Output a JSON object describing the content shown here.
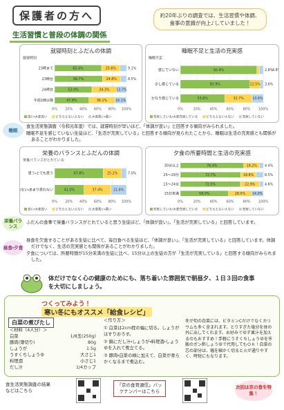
{
  "header": {
    "title": "保護者の方へ",
    "callout": "約20年ぶりの調査では、生活習慣や体調、食事の意識が向上♪していました！"
  },
  "section_title": "生活習慣と普段の体調の関係",
  "chart_data": [
    {
      "type": "bar",
      "orientation": "horizontal",
      "stacked": true,
      "title": "就寝時刻とふだんの体調",
      "y_label": "就寝時刻",
      "categories": [
        "23時まで",
        "23時台",
        "24時台",
        "午前1時以降"
      ],
      "series": [
        {
          "name": "良い・大変良い",
          "color": "#8cc152",
          "values": [
            65.4,
            66.7,
            52.0,
            47.8
          ],
          "value_labels": [
            "65.4%",
            "66.7%",
            "52.0%",
            "47.8%"
          ]
        },
        {
          "name": "どちらともいえない",
          "color": "#ffd54f",
          "values": [
            25.6,
            24.8,
            34.3,
            36.1
          ],
          "value_labels": [
            "25.6%",
            "24.8%",
            "34.3%",
            "36.1%"
          ]
        },
        {
          "name": "大変悪い・悪い",
          "color": "#b3d4ec",
          "values": [
            9.1,
            8.5,
            13.7,
            16.1
          ],
          "value_labels": [
            "9.1%",
            "8.5%",
            "13.7%",
            "16.1%"
          ]
        }
      ],
      "xlim": [
        0,
        100
      ],
      "xticks": [
        {
          "value": 0,
          "label": "0%"
        },
        {
          "value": 20,
          "label": "20%"
        },
        {
          "value": 40,
          "label": "40%"
        },
        {
          "value": 60,
          "label": "60%"
        },
        {
          "value": 80,
          "label": "80%"
        },
        {
          "value": 100,
          "label": "100%"
        }
      ],
      "grid": true
    },
    {
      "type": "bar",
      "orientation": "horizontal",
      "stacked": true,
      "title": "睡眠不足と生活の充実感",
      "y_label": "睡眠不足",
      "categories": [
        "感じていない",
        "少し感じている",
        "かなり感じている"
      ],
      "series": [
        {
          "name": "充実している・大変充実している",
          "color": "#8cc152",
          "values": [
            92.4,
            83.9,
            53.8
          ],
          "value_labels": [
            "92.4%",
            "83.9%",
            "53.8%"
          ]
        },
        {
          "name": "どちらともいえない",
          "color": "#ffd54f",
          "values": [
            2.8,
            12.5,
            32.7
          ],
          "value_labels": [
            "2.8%",
            "12.5%",
            "32.7%"
          ]
        },
        {
          "name": "充実していない",
          "color": "#b3d4ec",
          "values": [
            4.8,
            3.6,
            13.6
          ],
          "value_labels": [
            "4.8%",
            "3.6%",
            "13.6%"
          ]
        }
      ],
      "xlim": [
        0,
        100
      ],
      "xticks": [
        {
          "value": 0,
          "label": "0%"
        },
        {
          "value": 20,
          "label": "20%"
        },
        {
          "value": 40,
          "label": "40%"
        },
        {
          "value": 60,
          "label": "60%"
        },
        {
          "value": 80,
          "label": "80%"
        },
        {
          "value": 100,
          "label": "100%"
        }
      ],
      "grid": true
    },
    {
      "type": "bar",
      "orientation": "horizontal",
      "stacked": true,
      "title": "栄養のバランスとふだんの体調",
      "y_label": "栄養バランスがとれている",
      "categories": [
        "思う・とても思う",
        "思わない・あまり思わない"
      ],
      "series": [
        {
          "name": "良い・大変良い",
          "color": "#8cc152",
          "values": [
            67.8,
            41.0
          ],
          "value_labels": [
            "67.8%",
            "41.0%"
          ]
        },
        {
          "name": "どちらともいえない",
          "color": "#ffd54f",
          "values": [
            25.2,
            37.4
          ],
          "value_labels": [
            "25.2%",
            "37.4%"
          ]
        },
        {
          "name": "大変悪い・悪い",
          "color": "#b3d4ec",
          "values": [
            7.0,
            21.6
          ],
          "value_labels": [
            "7.0%",
            "21.6%"
          ]
        }
      ],
      "xlim": [
        0,
        100
      ],
      "xticks": [
        {
          "value": 0,
          "label": "0%"
        },
        {
          "value": 20,
          "label": "20%"
        },
        {
          "value": 40,
          "label": "40%"
        },
        {
          "value": 60,
          "label": "60%"
        },
        {
          "value": 80,
          "label": "80%"
        },
        {
          "value": 100,
          "label": "100%"
        }
      ],
      "grid": true
    },
    {
      "type": "bar",
      "orientation": "horizontal",
      "stacked": true,
      "title": "夕食の所要時間と生活の充実感",
      "categories": [
        "30分以上",
        "25〜29分",
        "15〜24分",
        "15分未満"
      ],
      "series": [
        {
          "name": "充実している・大変充実している",
          "color": "#8cc152",
          "values": [
            76.4,
            72.7,
            72.5,
            58.0
          ],
          "value_labels": [
            "76.4%",
            "72.7%",
            "72.5%",
            "58.0%"
          ]
        },
        {
          "name": "どちらともいえない",
          "color": "#ffd54f",
          "values": [
            19.2,
            18.8,
            22.9,
            28.0
          ],
          "value_labels": [
            "19.2%",
            "18.8%",
            "22.9%",
            "28.0%"
          ]
        },
        {
          "name": "充実していない",
          "color": "#b3d4ec",
          "values": [
            4.4,
            8.5,
            4.6,
            14.0
          ],
          "value_labels": [
            "4.4%",
            "8.5%",
            "4.6%",
            "14.0%"
          ]
        }
      ],
      "xlim": [
        0,
        100
      ],
      "xticks": [
        {
          "value": 0,
          "label": "0%"
        },
        {
          "value": 20,
          "label": "20%"
        },
        {
          "value": 40,
          "label": "40%"
        },
        {
          "value": 60,
          "label": "60%"
        },
        {
          "value": 80,
          "label": "80%"
        },
        {
          "value": 100,
          "label": "100%"
        }
      ],
      "grid": true
    }
  ],
  "notes": [
    {
      "label": "睡眠",
      "items": [
        "食生活実態調査（令和元年度）では、就寝時刻が早いほど、「体調が良い」と回答する傾向がみられました。",
        "睡眠不足を感じていない生徒ほど、「生活が充実している」と回答する傾向が見られたことから、睡眠は生活の充実感とも関係があることがわかりました。"
      ]
    },
    {
      "label": "栄養バランス",
      "items": [
        "ふだんの食事で栄養バランスがとれていると思う生徒ほど、「体調が良い」、「生活が充実している」と回答しています。"
      ]
    },
    {
      "label": "昼食・夕食",
      "items": [
        "昼食を欠食することがある生徒に比べて、毎日食べる生徒ほど、「体調が良い」、「生活が充実している」と回答しています。体調だけでなく、生活の充実感とも関係があることがわかりました。",
        "夕食については、所要時間が15分未満の生徒に比べ、15分以上の生徒の方が「生活が充実している」と回答する傾向がみられました。"
      ]
    }
  ],
  "banner": "体だけでなく心の健康のためにも、落ち着いた雰囲気で朝昼夕、１日３回の食事を大切にしましょう。",
  "recipe": {
    "kicker": "つくってみよう！",
    "title": "寒い冬にもオススメ「給食レシピ」",
    "dish": "白菜の煮びたし",
    "ingredients_heading": "＜材料（4人分）＞",
    "ingredients": [
      [
        "白菜",
        "1/8玉(250g)"
      ],
      [
        "豚肉(薄切り)",
        "80g"
      ],
      [
        "しょうが",
        "1.5g"
      ],
      [
        "うすくちしょうゆ",
        "大さじ1"
      ],
      [
        "料理酒",
        "小さじ1"
      ],
      [
        "だし汁",
        "1/4カップ"
      ]
    ],
    "steps_heading": "＜作り方＞",
    "steps": [
      "① 白菜は2cm程の幅に切る。しょうがはすりおろす。",
      "② 鍋にだし汁・しょうが・料理酒・しょうゆを入れて煮立てる。",
      "③ 豚肉・白菜の順に加えて、白菜が柔らかくなるまで煮込む。"
    ],
    "note": "冬が旬の白菜には、ビタミンCだけでなくカリウムも多く含まれます。とりすぎた塩分を体の外に出してくれます。お好みでゆず果汁を加えるのもおすすめ！手軽にうすくちしょうゆを市販のポン酢しょうゆで代用してもＯＫ！白菜の芯の部分は、幅を細かく切ると火が通りやすく、時短にもなります。"
  },
  "footer": {
    "survey": "食生活実態調査の結果などはこちら",
    "backnumber": "「京の食育通信」バックナンバーはこちら",
    "next": "次回は京の食を特集！"
  }
}
